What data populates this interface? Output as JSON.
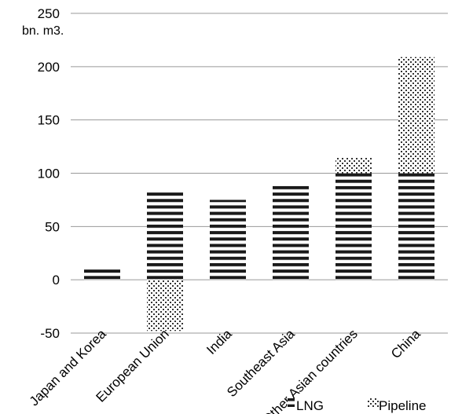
{
  "chart_data": {
    "type": "bar",
    "stacked": true,
    "unit_label": "bn. m3.",
    "categories": [
      "Japan and Korea",
      "European Union",
      "India",
      "Southeast Asia",
      "Other Asian countries",
      "China"
    ],
    "series": [
      {
        "name": "LNG",
        "values": [
          12,
          82,
          75,
          90,
          100,
          100
        ],
        "pattern": "horizontal-stripes"
      },
      {
        "name": "Pipeline",
        "values": [
          0,
          -48,
          0,
          0,
          15,
          109
        ],
        "pattern": "dots"
      }
    ],
    "ylim": [
      -50,
      250
    ],
    "yticks": [
      -50,
      0,
      50,
      100,
      150,
      200,
      250
    ],
    "grid": true,
    "legend_position": "bottom-right",
    "colors": {
      "bar": "#1a1a1a",
      "grid": "#999999",
      "background": "#ffffff"
    }
  }
}
